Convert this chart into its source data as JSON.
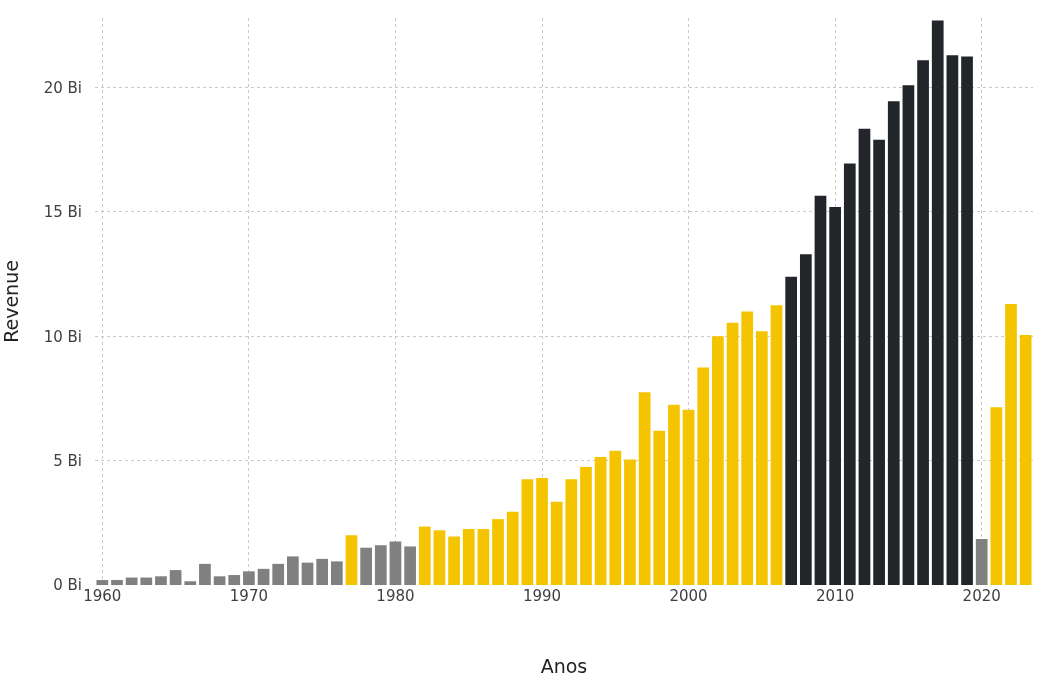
{
  "chart_data": {
    "type": "bar",
    "xlabel": "Anos",
    "ylabel": "Revenue",
    "x": [
      1960,
      1961,
      1962,
      1963,
      1964,
      1965,
      1966,
      1967,
      1968,
      1969,
      1970,
      1971,
      1972,
      1973,
      1974,
      1975,
      1976,
      1977,
      1978,
      1979,
      1980,
      1981,
      1982,
      1983,
      1984,
      1985,
      1986,
      1987,
      1988,
      1989,
      1990,
      1991,
      1992,
      1993,
      1994,
      1995,
      1996,
      1997,
      1998,
      1999,
      2000,
      2001,
      2002,
      2003,
      2004,
      2005,
      2006,
      2007,
      2008,
      2009,
      2010,
      2011,
      2012,
      2013,
      2014,
      2015,
      2016,
      2017,
      2018,
      2019,
      2020,
      2021,
      2022,
      2023
    ],
    "values": [
      0.2,
      0.2,
      0.3,
      0.3,
      0.35,
      0.6,
      0.15,
      0.85,
      0.35,
      0.4,
      0.55,
      0.65,
      0.85,
      1.15,
      0.9,
      1.05,
      0.95,
      2.0,
      1.5,
      1.6,
      1.75,
      1.55,
      2.35,
      2.2,
      1.95,
      2.25,
      2.25,
      2.65,
      2.95,
      4.25,
      4.3,
      3.35,
      4.25,
      4.75,
      5.15,
      5.4,
      5.05,
      7.75,
      6.2,
      7.25,
      7.05,
      8.75,
      10.0,
      10.55,
      11.0,
      10.2,
      11.25,
      12.4,
      13.3,
      15.65,
      15.2,
      16.95,
      18.35,
      17.9,
      19.45,
      20.1,
      21.1,
      22.7,
      21.3,
      21.25,
      1.85,
      7.15,
      11.3,
      10.05
    ],
    "colors": [
      "#808080",
      "#808080",
      "#808080",
      "#808080",
      "#808080",
      "#808080",
      "#808080",
      "#808080",
      "#808080",
      "#808080",
      "#808080",
      "#808080",
      "#808080",
      "#808080",
      "#808080",
      "#808080",
      "#808080",
      "#f5c400",
      "#808080",
      "#808080",
      "#808080",
      "#808080",
      "#f5c400",
      "#f5c400",
      "#f5c400",
      "#f5c400",
      "#f5c400",
      "#f5c400",
      "#f5c400",
      "#f5c400",
      "#f5c400",
      "#f5c400",
      "#f5c400",
      "#f5c400",
      "#f5c400",
      "#f5c400",
      "#f5c400",
      "#f5c400",
      "#f5c400",
      "#f5c400",
      "#f5c400",
      "#f5c400",
      "#f5c400",
      "#f5c400",
      "#f5c400",
      "#f5c400",
      "#f5c400",
      "#22252a",
      "#22252a",
      "#22252a",
      "#22252a",
      "#22252a",
      "#22252a",
      "#22252a",
      "#22252a",
      "#22252a",
      "#22252a",
      "#22252a",
      "#22252a",
      "#22252a",
      "#808080",
      "#f5c400",
      "#f5c400",
      "#f5c400"
    ],
    "xlim": [
      1959.5,
      2023.5
    ],
    "xticks": [
      1960,
      1970,
      1980,
      1990,
      2000,
      2010,
      2020
    ],
    "ylim": [
      0,
      22.8
    ],
    "yticks": [
      {
        "value": 0,
        "label": "0 Bi"
      },
      {
        "value": 5,
        "label": "5 Bi"
      },
      {
        "value": 10,
        "label": "10 Bi"
      },
      {
        "value": 15,
        "label": "15 Bi"
      },
      {
        "value": 20,
        "label": "20 Bi"
      }
    ],
    "grid": true
  }
}
